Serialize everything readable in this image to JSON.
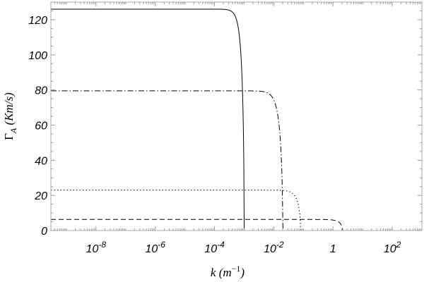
{
  "chart_data": {
    "type": "line",
    "title": "",
    "xlabel": "k (m⁻¹)",
    "ylabel": "Γ_A (Km/s)",
    "xscale": "log",
    "xlim": [
      3e-10,
      1000
    ],
    "ylim": [
      0,
      130
    ],
    "x_ticks": [
      {
        "value": 1e-08,
        "label": "10",
        "exp": "-8"
      },
      {
        "value": 1e-06,
        "label": "10",
        "exp": "-6"
      },
      {
        "value": 0.0001,
        "label": "10",
        "exp": "-4"
      },
      {
        "value": 0.01,
        "label": "10",
        "exp": "-2"
      },
      {
        "value": 1,
        "label": "1",
        "exp": ""
      },
      {
        "value": 100,
        "label": "10",
        "exp": "2"
      }
    ],
    "y_ticks": [
      0,
      20,
      40,
      60,
      80,
      100,
      120
    ],
    "grid": false,
    "legend": "none",
    "series": [
      {
        "style": "solid",
        "plateau": 126,
        "kc": 0.001,
        "sharpness": 4,
        "kmax": 1e-06
      },
      {
        "style": "dashdot",
        "plateau": 79.5,
        "kc": 0.02,
        "sharpness": 3,
        "kmax": 0.0001
      },
      {
        "style": "dotted",
        "plateau": 23,
        "kc": 0.08,
        "sharpness": 3,
        "kmax": 0.001
      },
      {
        "style": "dashed",
        "plateau": 6.3,
        "kc": 2.1,
        "sharpness": 3,
        "kmax": 0.005
      }
    ]
  }
}
